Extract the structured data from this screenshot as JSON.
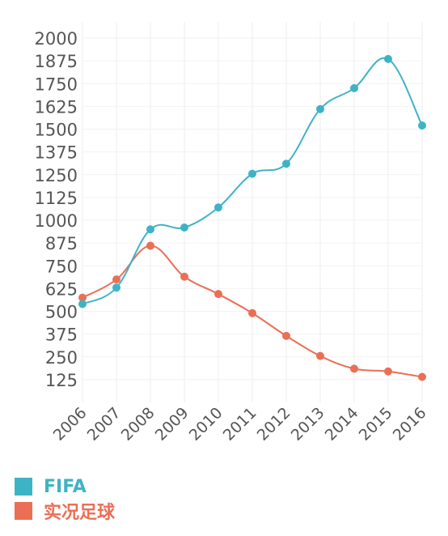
{
  "chart_data": {
    "type": "line",
    "categories": [
      "2006",
      "2007",
      "2008",
      "2009",
      "2010",
      "2011",
      "2012",
      "2013",
      "2014",
      "2015",
      "2016"
    ],
    "y_ticks": [
      "2000",
      "1875",
      "1750",
      "1625",
      "1500",
      "1375",
      "1250",
      "1125",
      "1000",
      "875",
      "750",
      "625",
      "500",
      "375",
      "250",
      "125"
    ],
    "ylim": [
      0,
      2000
    ],
    "grid": true,
    "legend": "bottom-left",
    "series": [
      {
        "name": "FIFA",
        "color": "#3fb3c6",
        "values": [
          540,
          630,
          950,
          960,
          1070,
          1255,
          1310,
          1610,
          1725,
          1885,
          1520
        ]
      },
      {
        "name": "实况足球",
        "color": "#ea6f55",
        "values": [
          575,
          675,
          860,
          690,
          595,
          490,
          365,
          255,
          185,
          170,
          140
        ]
      }
    ]
  }
}
